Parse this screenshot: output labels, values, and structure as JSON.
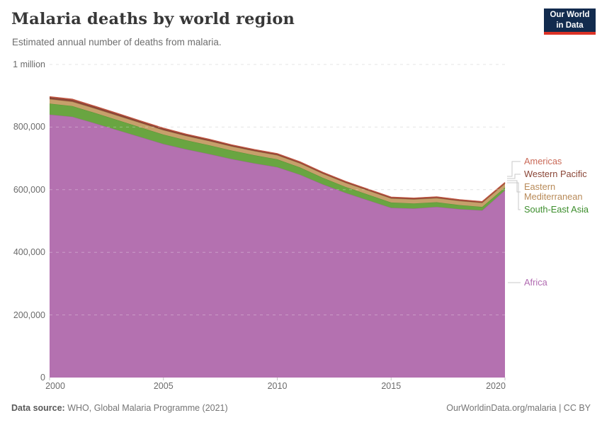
{
  "header": {
    "title": "Malaria deaths by world region",
    "subtitle": "Estimated annual number of deaths from malaria.",
    "logo": {
      "line1": "Our World",
      "line2": "in Data"
    }
  },
  "footer": {
    "source_label": "Data source:",
    "source_text": " WHO, Global Malaria Programme (2021)",
    "credit": "OurWorldinData.org/malaria | CC BY"
  },
  "chart_data": {
    "type": "area",
    "stacked": true,
    "title": "Malaria deaths by world region",
    "xlabel": "",
    "ylabel": "",
    "xlim": [
      2000,
      2020
    ],
    "ylim": [
      0,
      1000000
    ],
    "grid": "dashed-horizontal",
    "legend_position": "right",
    "x": [
      2000,
      2001,
      2002,
      2003,
      2004,
      2005,
      2006,
      2007,
      2008,
      2009,
      2010,
      2011,
      2012,
      2013,
      2014,
      2015,
      2016,
      2017,
      2018,
      2019,
      2020
    ],
    "series": [
      {
        "key": "africa",
        "name": "Africa",
        "fill": "#b471b0",
        "edge": "#a65ea2",
        "label_color": "#b16bb1",
        "values": [
          840000,
          833000,
          812000,
          790000,
          768000,
          746000,
          729000,
          714000,
          698000,
          684000,
          672000,
          648000,
          617000,
          590000,
          566000,
          542000,
          540000,
          545000,
          538000,
          534000,
          598000
        ]
      },
      {
        "key": "south-east-asia",
        "name": "South-East Asia",
        "fill": "#69a541",
        "edge": "#589536",
        "label_color": "#3d8e2d",
        "values": [
          35000,
          34000,
          33000,
          32000,
          31000,
          30000,
          29000,
          28000,
          27000,
          26000,
          25000,
          23000,
          21000,
          19000,
          18000,
          17000,
          16000,
          15000,
          13000,
          11000,
          9000
        ]
      },
      {
        "key": "eastern-mediterranean",
        "name": "Eastern Mediterranean",
        "fill": "#c6a06b",
        "edge": "#b68c53",
        "label_color": "#b88a58",
        "values": [
          14000,
          14000,
          14000,
          14000,
          14000,
          14000,
          13500,
          13500,
          13000,
          13000,
          13000,
          13000,
          13000,
          13000,
          13000,
          13000,
          13000,
          13000,
          13000,
          13000,
          12000
        ]
      },
      {
        "key": "western-pacific",
        "name": "Western Pacific",
        "fill": "#8d4a3a",
        "edge": "#7b392c",
        "label_color": "#8a4536",
        "values": [
          6000,
          6000,
          5500,
          5500,
          5000,
          5000,
          4500,
          4500,
          4000,
          4000,
          4000,
          3800,
          3600,
          3500,
          3400,
          3400,
          3400,
          3400,
          3400,
          3300,
          3300
        ]
      },
      {
        "key": "americas",
        "name": "Americas",
        "fill": "#d2695a",
        "edge": "#c05743",
        "label_color": "#ca6a58",
        "values": [
          2000,
          1900,
          1800,
          1700,
          1600,
          1500,
          1400,
          1300,
          1200,
          1100,
          1000,
          950,
          900,
          850,
          800,
          750,
          700,
          650,
          600,
          550,
          600
        ]
      }
    ],
    "legend_order": [
      "americas",
      "western-pacific",
      "eastern-mediterranean",
      "south-east-asia",
      "africa"
    ],
    "x_ticks": [
      {
        "value": 2000,
        "label": "2000"
      },
      {
        "value": 2005,
        "label": "2005"
      },
      {
        "value": 2010,
        "label": "2010"
      },
      {
        "value": 2015,
        "label": "2015"
      },
      {
        "value": 2020,
        "label": "2020"
      }
    ],
    "y_ticks": [
      {
        "value": 0,
        "label": "0"
      },
      {
        "value": 200000,
        "label": "200,000"
      },
      {
        "value": 400000,
        "label": "400,000"
      },
      {
        "value": 600000,
        "label": "600,000"
      },
      {
        "value": 800000,
        "label": "800,000"
      },
      {
        "value": 1000000,
        "label": "1 million"
      }
    ],
    "colors": {
      "background": "#ffffff",
      "gridline": "#dcdcdc",
      "tick": "#c3c3c3",
      "leader_line": "#c9c9c9"
    }
  }
}
